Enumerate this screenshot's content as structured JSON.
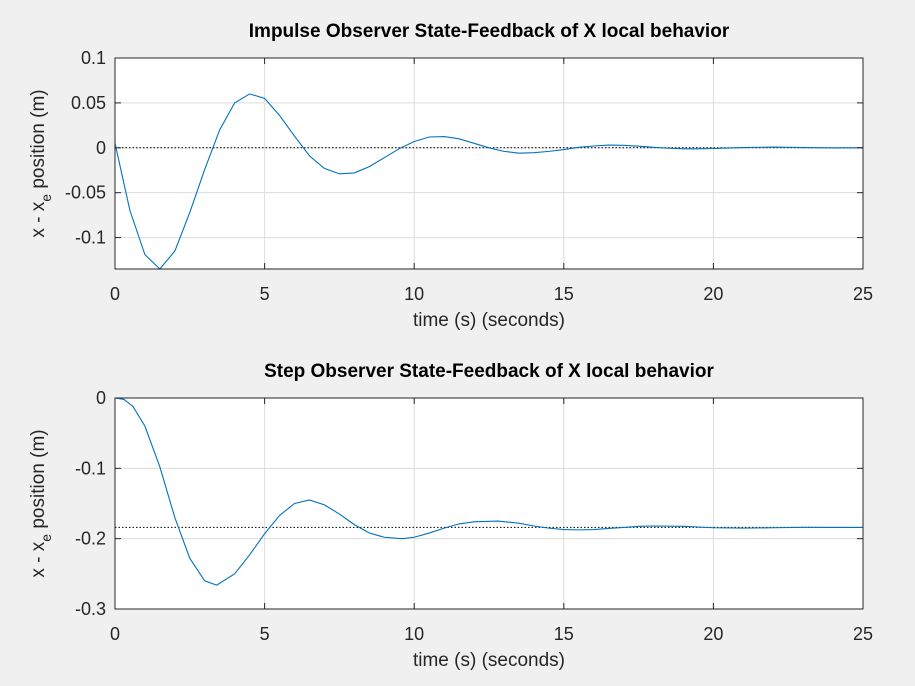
{
  "chart_data": [
    {
      "type": "line",
      "title": "Impulse Observer State-Feedback of X local behavior",
      "xlabel": "time (s) (seconds)",
      "ylabel": "x - x_e position (m)",
      "ylabel_main": "x - x",
      "ylabel_sub": "e",
      "ylabel_tail": " position (m)",
      "xlim": [
        0,
        25
      ],
      "ylim": [
        -0.135,
        0.1
      ],
      "xticks": [
        0,
        5,
        10,
        15,
        20,
        25
      ],
      "xtick_labels": [
        "0",
        "5",
        "10",
        "15",
        "20",
        "25"
      ],
      "yticks": [
        -0.1,
        -0.05,
        0,
        0.05,
        0.1
      ],
      "ytick_labels": [
        "-0.1",
        "-0.05",
        "0",
        "0.05",
        "0.1"
      ],
      "grid": true,
      "reference_line": 0,
      "series": [
        {
          "color": "#0072bd",
          "x": [
            0,
            0.5,
            1,
            1.5,
            2,
            2.5,
            3,
            3.5,
            4,
            4.5,
            5,
            5.5,
            6,
            6.5,
            7,
            7.5,
            8,
            8.5,
            9,
            9.5,
            10,
            10.5,
            11,
            11.5,
            12,
            12.5,
            13,
            13.5,
            14,
            14.5,
            15,
            15.5,
            16,
            16.5,
            17,
            17.5,
            18,
            18.5,
            19,
            19.5,
            20,
            21,
            22,
            23,
            24,
            25
          ],
          "values": [
            0.005,
            -0.07,
            -0.119,
            -0.135,
            -0.115,
            -0.072,
            -0.024,
            0.02,
            0.05,
            0.06,
            0.055,
            0.036,
            0.013,
            -0.009,
            -0.023,
            -0.029,
            -0.028,
            -0.021,
            -0.011,
            -0.001,
            0.007,
            0.012,
            0.0125,
            0.01,
            0.005,
            0.0,
            -0.004,
            -0.006,
            -0.0055,
            -0.004,
            -0.002,
            0.0005,
            0.002,
            0.003,
            0.0028,
            0.0018,
            0.0005,
            -0.0005,
            -0.0012,
            -0.0012,
            -0.0008,
            0.0002,
            0.0008,
            0.0003,
            -0.0002,
            0.0
          ]
        }
      ]
    },
    {
      "type": "line",
      "title": "Step Observer State-Feedback of X local behavior",
      "xlabel": "time (s) (seconds)",
      "ylabel": "x - x_e position (m)",
      "ylabel_main": "x - x",
      "ylabel_sub": "e",
      "ylabel_tail": " position (m)",
      "xlim": [
        0,
        25
      ],
      "ylim": [
        -0.3,
        0
      ],
      "xticks": [
        0,
        5,
        10,
        15,
        20,
        25
      ],
      "xtick_labels": [
        "0",
        "5",
        "10",
        "15",
        "20",
        "25"
      ],
      "yticks": [
        -0.3,
        -0.2,
        -0.1,
        0
      ],
      "ytick_labels": [
        "-0.3",
        "-0.2",
        "-0.1",
        "0"
      ],
      "grid": true,
      "reference_line": -0.184,
      "series": [
        {
          "color": "#0072bd",
          "x": [
            0,
            0.3,
            0.6,
            1,
            1.5,
            2,
            2.5,
            3,
            3.4,
            4,
            4.5,
            5,
            5.5,
            6,
            6.5,
            7,
            7.5,
            8,
            8.5,
            9,
            9.6,
            10,
            10.5,
            11,
            11.5,
            12,
            12.8,
            13.5,
            14,
            14.5,
            15,
            15.5,
            16,
            16.5,
            17,
            17.5,
            18,
            19,
            20,
            21,
            22,
            23,
            24,
            25
          ],
          "values": [
            0,
            -0.002,
            -0.012,
            -0.04,
            -0.098,
            -0.17,
            -0.228,
            -0.26,
            -0.266,
            -0.25,
            -0.223,
            -0.193,
            -0.167,
            -0.15,
            -0.145,
            -0.152,
            -0.165,
            -0.18,
            -0.192,
            -0.198,
            -0.2,
            -0.198,
            -0.192,
            -0.185,
            -0.179,
            -0.176,
            -0.175,
            -0.178,
            -0.182,
            -0.185,
            -0.187,
            -0.1875,
            -0.187,
            -0.1855,
            -0.184,
            -0.1825,
            -0.182,
            -0.1825,
            -0.1845,
            -0.185,
            -0.1845,
            -0.1838,
            -0.184,
            -0.184
          ]
        }
      ]
    }
  ]
}
